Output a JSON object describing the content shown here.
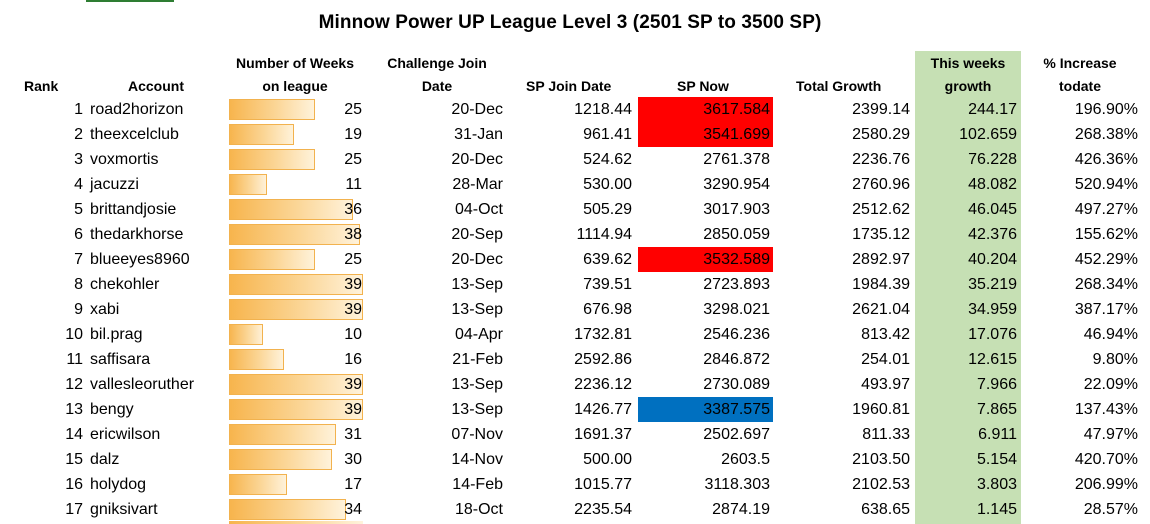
{
  "title": "Minnow Power UP League Level 3 (2501 SP to 3500 SP)",
  "headers": {
    "rank": "Rank",
    "account": "Account",
    "weeks_line1": "Number of Weeks",
    "weeks_line2": "on league",
    "join_line1": "Challenge Join",
    "join_line2": "Date",
    "sp_join": "SP Join Date",
    "sp_now": "SP Now",
    "total_growth": "Total Growth",
    "this_week_line1": "This weeks",
    "this_week_line2": "growth",
    "pct_line1": "% Increase",
    "pct_line2": "todate"
  },
  "colors": {
    "highlight_red": "#ff0000",
    "highlight_blue": "#0070c0",
    "this_week_column": "#c6e0b4",
    "databar": "#f7b44c"
  },
  "weeks_bar_max": 39,
  "rows": [
    {
      "rank": "1",
      "account": "road2horizon",
      "weeks": 25,
      "join_date": "20-Dec",
      "sp_join": "1218.44",
      "sp_now": "3617.584",
      "highlight": "red",
      "total_growth": "2399.14",
      "week_growth": "244.17",
      "pct": "196.90%"
    },
    {
      "rank": "2",
      "account": "theexcelclub",
      "weeks": 19,
      "join_date": "31-Jan",
      "sp_join": "961.41",
      "sp_now": "3541.699",
      "highlight": "red",
      "total_growth": "2580.29",
      "week_growth": "102.659",
      "pct": "268.38%"
    },
    {
      "rank": "3",
      "account": "voxmortis",
      "weeks": 25,
      "join_date": "20-Dec",
      "sp_join": "524.62",
      "sp_now": "2761.378",
      "highlight": "",
      "total_growth": "2236.76",
      "week_growth": "76.228",
      "pct": "426.36%"
    },
    {
      "rank": "4",
      "account": "jacuzzi",
      "weeks": 11,
      "join_date": "28-Mar",
      "sp_join": "530.00",
      "sp_now": "3290.954",
      "highlight": "",
      "total_growth": "2760.96",
      "week_growth": "48.082",
      "pct": "520.94%"
    },
    {
      "rank": "5",
      "account": "brittandjosie",
      "weeks": 36,
      "join_date": "04-Oct",
      "sp_join": "505.29",
      "sp_now": "3017.903",
      "highlight": "",
      "total_growth": "2512.62",
      "week_growth": "46.045",
      "pct": "497.27%"
    },
    {
      "rank": "6",
      "account": "thedarkhorse",
      "weeks": 38,
      "join_date": "20-Sep",
      "sp_join": "1114.94",
      "sp_now": "2850.059",
      "highlight": "",
      "total_growth": "1735.12",
      "week_growth": "42.376",
      "pct": "155.62%"
    },
    {
      "rank": "7",
      "account": "blueeyes8960",
      "weeks": 25,
      "join_date": "20-Dec",
      "sp_join": "639.62",
      "sp_now": "3532.589",
      "highlight": "red",
      "total_growth": "2892.97",
      "week_growth": "40.204",
      "pct": "452.29%"
    },
    {
      "rank": "8",
      "account": "chekohler",
      "weeks": 39,
      "join_date": "13-Sep",
      "sp_join": "739.51",
      "sp_now": "2723.893",
      "highlight": "",
      "total_growth": "1984.39",
      "week_growth": "35.219",
      "pct": "268.34%"
    },
    {
      "rank": "9",
      "account": "xabi",
      "weeks": 39,
      "join_date": "13-Sep",
      "sp_join": "676.98",
      "sp_now": "3298.021",
      "highlight": "",
      "total_growth": "2621.04",
      "week_growth": "34.959",
      "pct": "387.17%"
    },
    {
      "rank": "10",
      "account": "bil.prag",
      "weeks": 10,
      "join_date": "04-Apr",
      "sp_join": "1732.81",
      "sp_now": "2546.236",
      "highlight": "",
      "total_growth": "813.42",
      "week_growth": "17.076",
      "pct": "46.94%"
    },
    {
      "rank": "11",
      "account": "saffisara",
      "weeks": 16,
      "join_date": "21-Feb",
      "sp_join": "2592.86",
      "sp_now": "2846.872",
      "highlight": "",
      "total_growth": "254.01",
      "week_growth": "12.615",
      "pct": "9.80%"
    },
    {
      "rank": "12",
      "account": "vallesleoruther",
      "weeks": 39,
      "join_date": "13-Sep",
      "sp_join": "2236.12",
      "sp_now": "2730.089",
      "highlight": "",
      "total_growth": "493.97",
      "week_growth": "7.966",
      "pct": "22.09%"
    },
    {
      "rank": "13",
      "account": "bengy",
      "weeks": 39,
      "join_date": "13-Sep",
      "sp_join": "1426.77",
      "sp_now": "3387.575",
      "highlight": "blue",
      "total_growth": "1960.81",
      "week_growth": "7.865",
      "pct": "137.43%"
    },
    {
      "rank": "14",
      "account": "ericwilson",
      "weeks": 31,
      "join_date": "07-Nov",
      "sp_join": "1691.37",
      "sp_now": "2502.697",
      "highlight": "",
      "total_growth": "811.33",
      "week_growth": "6.911",
      "pct": "47.97%"
    },
    {
      "rank": "15",
      "account": "dalz",
      "weeks": 30,
      "join_date": "14-Nov",
      "sp_join": "500.00",
      "sp_now": "2603.5",
      "highlight": "",
      "total_growth": "2103.50",
      "week_growth": "5.154",
      "pct": "420.70%"
    },
    {
      "rank": "16",
      "account": "holydog",
      "weeks": 17,
      "join_date": "14-Feb",
      "sp_join": "1015.77",
      "sp_now": "3118.303",
      "highlight": "",
      "total_growth": "2102.53",
      "week_growth": "3.803",
      "pct": "206.99%"
    },
    {
      "rank": "17",
      "account": "gniksivart",
      "weeks": 34,
      "join_date": "18-Oct",
      "sp_join": "2235.54",
      "sp_now": "2874.19",
      "highlight": "",
      "total_growth": "638.65",
      "week_growth": "1.145",
      "pct": "28.57%"
    }
  ]
}
